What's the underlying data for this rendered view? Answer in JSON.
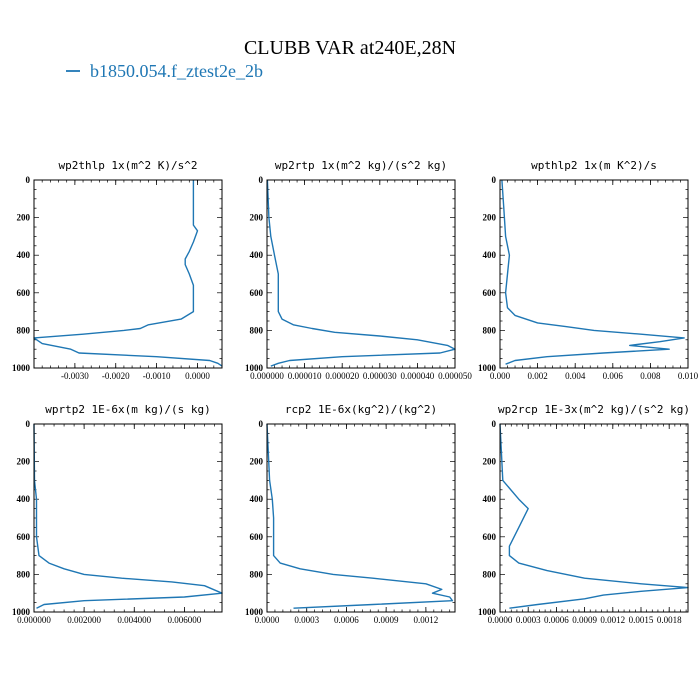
{
  "title": "CLUBB VAR at240E,28N",
  "legend": {
    "label": "b1850.054.f_ztest2e_2b",
    "color": "#1f77b4"
  },
  "chart_data": [
    {
      "type": "line",
      "title": "wp2thlp  1x(m^2 K)/s^2",
      "xlim": [
        -0.004,
        0.0006
      ],
      "ylim": [
        1000,
        0
      ],
      "xticks": [
        -0.003,
        -0.002,
        -0.001,
        0.0
      ],
      "xtick_labels": [
        "-0.0030",
        "-0.0020",
        "-0.0010",
        "0.0000"
      ],
      "yticks": [
        0,
        200,
        400,
        600,
        800,
        1000
      ],
      "series": [
        {
          "name": "b1850.054.f_ztest2e_2b",
          "points": [
            [
              -0.0001,
              0
            ],
            [
              -0.0001,
              120
            ],
            [
              -0.0001,
              240
            ],
            [
              0.0,
              270
            ],
            [
              -0.0001,
              330
            ],
            [
              -0.0002,
              380
            ],
            [
              -0.0003,
              420
            ],
            [
              -0.0003,
              450
            ],
            [
              -0.0002,
              500
            ],
            [
              -0.0001,
              560
            ],
            [
              -0.0001,
              620
            ],
            [
              -0.0001,
              700
            ],
            [
              -0.0004,
              740
            ],
            [
              -0.0012,
              770
            ],
            [
              -0.0014,
              790
            ],
            [
              -0.0018,
              800
            ],
            [
              -0.0028,
              820
            ],
            [
              -0.004,
              840
            ],
            [
              -0.0038,
              870
            ],
            [
              -0.0031,
              900
            ],
            [
              -0.0029,
              920
            ],
            [
              -0.001,
              940
            ],
            [
              0.0003,
              960
            ],
            [
              0.0005,
              975
            ],
            [
              0.0006,
              990
            ]
          ]
        }
      ]
    },
    {
      "type": "line",
      "title": "wp2rtp  1x(m^2 kg)/(s^2 kg)",
      "xlim": [
        0,
        5e-05
      ],
      "ylim": [
        1000,
        0
      ],
      "xticks": [
        0,
        1e-05,
        2e-05,
        3e-05,
        4e-05,
        5e-05
      ],
      "xtick_labels": [
        "0.000000",
        "0.000010",
        "0.000020",
        "0.000030",
        "0.000040",
        "0.000050"
      ],
      "yticks": [
        0,
        200,
        400,
        600,
        800,
        1000
      ],
      "series": [
        {
          "name": "b1850.054.f_ztest2e_2b",
          "points": [
            [
              1e-07,
              0
            ],
            [
              5e-07,
              200
            ],
            [
              1e-06,
              300
            ],
            [
              2e-06,
              400
            ],
            [
              3e-06,
              500
            ],
            [
              3e-06,
              600
            ],
            [
              3e-06,
              700
            ],
            [
              4e-06,
              740
            ],
            [
              7e-06,
              770
            ],
            [
              1.2e-05,
              790
            ],
            [
              1.8e-05,
              810
            ],
            [
              3e-05,
              830
            ],
            [
              4e-05,
              850
            ],
            [
              4.8e-05,
              880
            ],
            [
              5e-05,
              900
            ],
            [
              4.6e-05,
              920
            ],
            [
              2e-05,
              940
            ],
            [
              6e-06,
              960
            ],
            [
              3e-06,
              975
            ],
            [
              1e-06,
              990
            ]
          ]
        }
      ]
    },
    {
      "type": "line",
      "title": "wpthlp2  1x(m K^2)/s",
      "xlim": [
        0,
        0.01
      ],
      "ylim": [
        1000,
        0
      ],
      "xticks": [
        0,
        0.002,
        0.004,
        0.006,
        0.008,
        0.01
      ],
      "xtick_labels": [
        "0.000",
        "0.002",
        "0.004",
        "0.006",
        "0.008",
        "0.010"
      ],
      "yticks": [
        0,
        200,
        400,
        600,
        800,
        1000
      ],
      "series": [
        {
          "name": "b1850.054.f_ztest2e_2b",
          "points": [
            [
              0.0001,
              0
            ],
            [
              0.0002,
              150
            ],
            [
              0.0003,
              300
            ],
            [
              0.0005,
              400
            ],
            [
              0.0004,
              500
            ],
            [
              0.0003,
              600
            ],
            [
              0.0004,
              680
            ],
            [
              0.0008,
              720
            ],
            [
              0.002,
              760
            ],
            [
              0.0035,
              780
            ],
            [
              0.005,
              800
            ],
            [
              0.0075,
              820
            ],
            [
              0.0098,
              840
            ],
            [
              0.0085,
              860
            ],
            [
              0.0069,
              880
            ],
            [
              0.009,
              900
            ],
            [
              0.0055,
              920
            ],
            [
              0.0025,
              940
            ],
            [
              0.0008,
              960
            ],
            [
              0.0003,
              980
            ]
          ]
        }
      ]
    },
    {
      "type": "line",
      "title": "wprtp2  1E-6x(m kg)/(s kg)",
      "xlim": [
        0,
        0.0075
      ],
      "ylim": [
        1000,
        0
      ],
      "xticks": [
        0,
        0.002,
        0.004,
        0.006
      ],
      "xtick_labels": [
        "0.000000",
        "0.002000",
        "0.004000",
        "0.006000"
      ],
      "yticks": [
        0,
        200,
        400,
        600,
        800,
        1000
      ],
      "series": [
        {
          "name": "b1850.054.f_ztest2e_2b",
          "points": [
            [
              0.0,
              0
            ],
            [
              2e-05,
              300
            ],
            [
              0.0001,
              400
            ],
            [
              0.0001,
              500
            ],
            [
              0.0001,
              600
            ],
            [
              0.0002,
              700
            ],
            [
              0.0006,
              740
            ],
            [
              0.0012,
              770
            ],
            [
              0.002,
              800
            ],
            [
              0.0035,
              820
            ],
            [
              0.0055,
              840
            ],
            [
              0.0068,
              860
            ],
            [
              0.0075,
              900
            ],
            [
              0.006,
              920
            ],
            [
              0.002,
              940
            ],
            [
              0.0004,
              960
            ],
            [
              0.0001,
              980
            ]
          ]
        }
      ]
    },
    {
      "type": "line",
      "title": "rcp2  1E-6x(kg^2)/(kg^2)",
      "xlim": [
        0,
        0.00142
      ],
      "ylim": [
        1000,
        0
      ],
      "xticks": [
        0,
        0.0003,
        0.0006,
        0.0009,
        0.0012
      ],
      "xtick_labels": [
        "0.0000",
        "0.0003",
        "0.0006",
        "0.0009",
        "0.0012"
      ],
      "yticks": [
        0,
        200,
        400,
        600,
        800,
        1000
      ],
      "series": [
        {
          "name": "b1850.054.f_ztest2e_2b",
          "points": [
            [
              0.0,
              0
            ],
            [
              2e-05,
              300
            ],
            [
              4e-05,
              400
            ],
            [
              5e-05,
              500
            ],
            [
              5e-05,
              600
            ],
            [
              5e-05,
              700
            ],
            [
              0.0001,
              740
            ],
            [
              0.00025,
              770
            ],
            [
              0.0005,
              800
            ],
            [
              0.0008,
              820
            ],
            [
              0.0012,
              850
            ],
            [
              0.00132,
              880
            ],
            [
              0.00125,
              900
            ],
            [
              0.00138,
              920
            ],
            [
              0.0014,
              940
            ],
            [
              0.0008,
              960
            ],
            [
              0.0002,
              980
            ]
          ]
        }
      ]
    },
    {
      "type": "line",
      "title": "wp2rcp  1E-3x(m^2 kg)/(s^2 kg)",
      "xlim": [
        0,
        0.002
      ],
      "ylim": [
        1000,
        0
      ],
      "xticks": [
        0,
        0.0003,
        0.0006,
        0.0009,
        0.0012,
        0.0015,
        0.0018
      ],
      "xtick_labels": [
        "0.0000",
        "0.0003",
        "0.0006",
        "0.0009",
        "0.0012",
        "0.0015",
        "0.0018"
      ],
      "yticks": [
        0,
        200,
        400,
        600,
        800,
        1000
      ],
      "series": [
        {
          "name": "b1850.054.f_ztest2e_2b",
          "points": [
            [
              0.0,
              0
            ],
            [
              3e-05,
              300
            ],
            [
              0.0002,
              400
            ],
            [
              0.0003,
              450
            ],
            [
              0.0002,
              550
            ],
            [
              0.0001,
              650
            ],
            [
              0.0001,
              700
            ],
            [
              0.0002,
              740
            ],
            [
              0.0005,
              780
            ],
            [
              0.0009,
              820
            ],
            [
              0.0015,
              850
            ],
            [
              0.002,
              870
            ],
            [
              0.0015,
              890
            ],
            [
              0.0011,
              910
            ],
            [
              0.0009,
              930
            ],
            [
              0.0004,
              960
            ],
            [
              0.0001,
              980
            ]
          ]
        }
      ]
    }
  ]
}
